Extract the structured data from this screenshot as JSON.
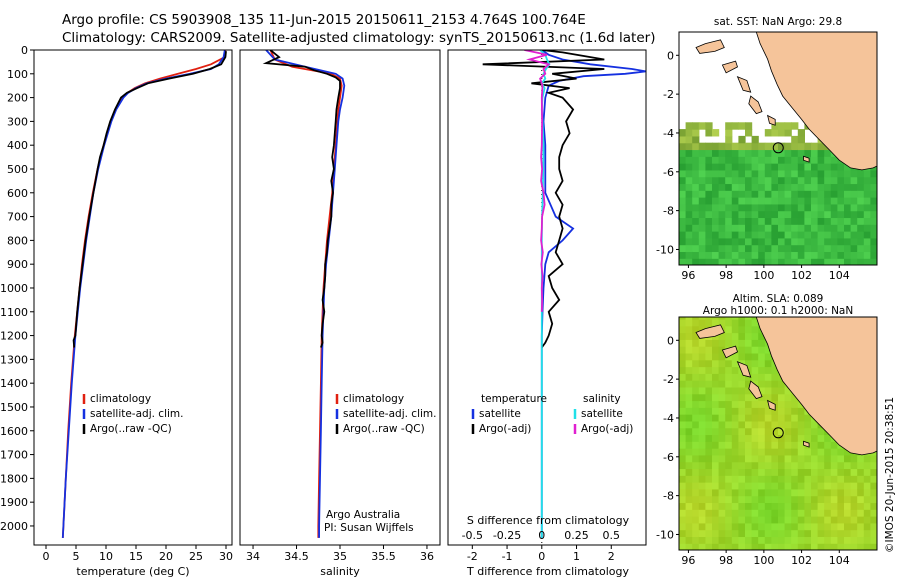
{
  "header": {
    "line1": "Argo profile: CS 5903908_135 11-Jun-2015 20150611_2153 4.764S 100.764E",
    "line2": "Climatology: CARS2009. Satellite-adjusted climatology: synTS_20150613.nc (1.6d later)"
  },
  "colors": {
    "climatology": "#e02010",
    "satellite": "#1530e0",
    "argo": "#000000",
    "satellite_salinity": "#20e0e8",
    "argo_salinity": "#e020d0",
    "land": "#f5c49a",
    "sst_ocean": "#3cc040",
    "sla_ocean": "#9ae020"
  },
  "depth_axis": {
    "ticks": [
      0,
      100,
      200,
      300,
      400,
      500,
      600,
      700,
      800,
      900,
      1000,
      1100,
      1200,
      1300,
      1400,
      1500,
      1600,
      1700,
      1800,
      1900,
      2000
    ],
    "range": [
      0,
      2080
    ]
  },
  "chart_data": [
    {
      "id": "temperature",
      "type": "line",
      "xlabel": "temperature (deg C)",
      "xticks": [
        0,
        5,
        10,
        15,
        20,
        25,
        30
      ],
      "xlim": [
        -2,
        31
      ],
      "legend": [
        "climatology",
        "satellite-adj. clim.",
        "Argo(..raw -QC)"
      ],
      "series": [
        {
          "name": "climatology",
          "color": "#e02010",
          "depth": [
            0,
            30,
            60,
            80,
            100,
            120,
            140,
            160,
            180,
            200,
            250,
            300,
            350,
            400,
            450,
            500,
            600,
            700,
            800,
            900,
            1000,
            1100,
            1200,
            1400,
            1600,
            1800,
            2000,
            2050
          ],
          "values": [
            29.9,
            29.8,
            27.5,
            25,
            22,
            19,
            16.5,
            14.8,
            13.6,
            12.8,
            11.6,
            10.8,
            10.2,
            9.6,
            9.1,
            8.6,
            7.8,
            7.1,
            6.5,
            6.0,
            5.6,
            5.2,
            4.8,
            4.2,
            3.7,
            3.3,
            2.9,
            2.8
          ]
        },
        {
          "name": "satellite-adj. clim.",
          "color": "#1530e0",
          "depth": [
            0,
            30,
            60,
            80,
            100,
            120,
            140,
            160,
            180,
            200,
            250,
            300,
            350,
            400,
            450,
            500,
            600,
            700,
            800,
            900,
            1000,
            1100,
            1200,
            1400,
            1600,
            1800,
            2000,
            2050
          ],
          "values": [
            29.8,
            29.6,
            28.8,
            27.5,
            24,
            20,
            16.8,
            15.0,
            13.7,
            12.9,
            11.7,
            10.9,
            10.3,
            9.7,
            9.2,
            8.7,
            7.9,
            7.3,
            6.7,
            6.2,
            5.7,
            5.3,
            4.9,
            4.3,
            3.8,
            3.3,
            2.9,
            2.8
          ]
        },
        {
          "name": "Argo(..raw -QC)",
          "color": "#000000",
          "depth": [
            5,
            30,
            60,
            80,
            100,
            120,
            140,
            160,
            180,
            200,
            250,
            300,
            350,
            400,
            450,
            500,
            600,
            700,
            800,
            900,
            1000,
            1100,
            1200,
            1220,
            1250
          ],
          "values": [
            30.0,
            29.9,
            29.2,
            27.3,
            24.5,
            20.5,
            17,
            15.2,
            13.5,
            12.5,
            11.5,
            10.7,
            10.1,
            9.6,
            9.0,
            8.6,
            7.9,
            7.2,
            6.6,
            6.1,
            5.6,
            5.2,
            4.9,
            4.6,
            4.7
          ]
        }
      ]
    },
    {
      "id": "salinity",
      "type": "line",
      "xlabel": "salinity",
      "xticks": [
        "34",
        "34.5",
        "35",
        "35.5",
        "36"
      ],
      "xlim": [
        33.85,
        36.15
      ],
      "legend": [
        "climatology",
        "satellite-adj. clim.",
        "Argo(..raw -QC)"
      ],
      "series": [
        {
          "name": "climatology",
          "color": "#e02010",
          "depth": [
            0,
            40,
            70,
            100,
            120,
            150,
            200,
            250,
            300,
            400,
            500,
            600,
            700,
            800,
            900,
            1000,
            1200,
            1400,
            1600,
            1800,
            2000,
            2050
          ],
          "values": [
            34.2,
            34.25,
            34.45,
            34.9,
            35.0,
            35.02,
            35.0,
            34.98,
            34.97,
            34.95,
            34.93,
            34.91,
            34.88,
            34.85,
            34.83,
            34.81,
            34.79,
            34.78,
            34.77,
            34.76,
            34.75,
            34.75
          ]
        },
        {
          "name": "satellite-adj. clim.",
          "color": "#1530e0",
          "depth": [
            0,
            40,
            70,
            100,
            120,
            150,
            200,
            250,
            300,
            400,
            500,
            600,
            700,
            800,
            900,
            1000,
            1200,
            1400,
            1600,
            1800,
            2000,
            2050
          ],
          "values": [
            34.15,
            34.25,
            34.6,
            34.95,
            35.03,
            35.05,
            35.03,
            35.0,
            34.98,
            34.96,
            34.94,
            34.92,
            34.9,
            34.87,
            34.84,
            34.82,
            34.8,
            34.79,
            34.78,
            34.77,
            34.76,
            34.76
          ]
        },
        {
          "name": "Argo(..raw -QC)",
          "color": "#000000",
          "depth": [
            0,
            30,
            55,
            70,
            85,
            100,
            115,
            130,
            160,
            200,
            250,
            300,
            350,
            400,
            450,
            500,
            550,
            600,
            650,
            700,
            750,
            800,
            850,
            900,
            950,
            1000,
            1050,
            1100,
            1150,
            1200,
            1230,
            1250
          ],
          "values": [
            34.2,
            34.3,
            34.15,
            34.6,
            34.7,
            34.85,
            34.95,
            35.0,
            35.0,
            34.98,
            34.96,
            34.95,
            34.94,
            34.93,
            34.91,
            34.93,
            34.9,
            34.92,
            34.9,
            34.9,
            34.88,
            34.86,
            34.85,
            34.83,
            34.83,
            34.82,
            34.8,
            34.82,
            34.8,
            34.79,
            34.8,
            34.78
          ]
        }
      ],
      "annotation": [
        "Argo Australia",
        "PI: Susan Wijffels"
      ]
    },
    {
      "id": "difference",
      "type": "line",
      "xlabel": "T difference from climatology",
      "xlabel_top": "S difference from climatology",
      "xticks": [
        "-2",
        "-1",
        "0",
        "1",
        "2"
      ],
      "xticks_top": [
        "-0.5",
        "-0.25",
        "0",
        "0.25",
        "0.5"
      ],
      "xlim": [
        -2.7,
        3.0
      ],
      "legend_temperature_title": "temperature",
      "legend_salinity_title": "salinity",
      "legend": [
        "satellite",
        "Argo(-adj)",
        "satellite",
        "Argo(-adj)"
      ],
      "series": [
        {
          "name": "T satellite",
          "color": "#1530e0",
          "depth": [
            0,
            20,
            40,
            60,
            80,
            90,
            100,
            110,
            130,
            150,
            200,
            300,
            400,
            500,
            600,
            700,
            750,
            800,
            850,
            900,
            1000,
            1100,
            1200,
            1400,
            1600,
            1800,
            2000,
            2050
          ],
          "values": [
            0,
            0.2,
            0.6,
            1.4,
            2.6,
            3.0,
            2.4,
            1.2,
            0.5,
            0.2,
            0.1,
            0.05,
            0.1,
            0.1,
            0.1,
            0.4,
            0.9,
            0.6,
            0.2,
            0.1,
            0.05,
            0.02,
            0,
            0,
            0,
            0,
            0,
            0
          ]
        },
        {
          "name": "T Argo(-adj)",
          "color": "#000000",
          "depth": [
            0,
            10,
            20,
            40,
            60,
            80,
            100,
            120,
            140,
            160,
            180,
            200,
            250,
            300,
            350,
            400,
            450,
            500,
            550,
            600,
            650,
            700,
            750,
            800,
            850,
            900,
            950,
            1000,
            1050,
            1100,
            1150,
            1200,
            1230,
            1250
          ],
          "values": [
            0,
            0.6,
            1.0,
            1.8,
            -1.7,
            1.8,
            0.3,
            1.0,
            -0.3,
            0.8,
            0.2,
            0.6,
            0.9,
            0.7,
            0.8,
            0.6,
            0.5,
            0.5,
            0.6,
            0.4,
            0.6,
            0.5,
            0.6,
            0.5,
            0.4,
            0.6,
            0.2,
            0.3,
            0.5,
            0.2,
            0.3,
            0.2,
            0.1,
            0.0
          ]
        },
        {
          "name": "S satellite",
          "color": "#20e0e8",
          "depth": [
            0,
            20,
            40,
            60,
            80,
            100,
            120,
            140,
            160,
            200,
            250,
            300,
            400,
            500,
            600,
            700,
            800,
            900,
            1000,
            1200,
            1400,
            1600,
            1800,
            2000,
            2050
          ],
          "values": [
            -0.05,
            0.1,
            0.15,
            0.22,
            0.12,
            0.05,
            0.1,
            0.0,
            0.08,
            0.02,
            0.0,
            0.02,
            0.05,
            0.04,
            0.03,
            0.01,
            0.0,
            0.0,
            0.0,
            0.0,
            0.0,
            0.0,
            0.0,
            0.0,
            0.0
          ]
        },
        {
          "name": "S Argo(-adj)",
          "color": "#e020d0",
          "depth": [
            0,
            20,
            40,
            60,
            80,
            100,
            120,
            150,
            200,
            300,
            400,
            450,
            500,
            550,
            600,
            650,
            700,
            750,
            800,
            850,
            900,
            950,
            1000,
            1050,
            1100
          ],
          "values": [
            -0.5,
            0.15,
            -0.35,
            0.2,
            0.05,
            0.1,
            -0.05,
            0.02,
            0.0,
            0.01,
            0.0,
            -0.02,
            0.01,
            -0.02,
            0.05,
            0.08,
            0.01,
            0.0,
            -0.02,
            0.03,
            -0.01,
            0.02,
            0.0,
            0.01,
            0.0
          ]
        }
      ]
    },
    {
      "id": "sst_map",
      "type": "heatmap",
      "title": "sat. SST: NaN Argo: 29.8",
      "xticks": [
        "96",
        "98",
        "100",
        "102",
        "104"
      ],
      "yticks": [
        "0",
        "-2",
        "-4",
        "-6",
        "-8",
        "-10"
      ],
      "xlim": [
        95.5,
        106.0
      ],
      "ylim": [
        -10.8,
        1.2
      ],
      "float_position": {
        "lon": 100.764,
        "lat": -4.764
      }
    },
    {
      "id": "sla_map",
      "type": "heatmap",
      "title_line1": "Altim. SLA: 0.089",
      "title_line2": "Argo h1000: 0.1 h2000: NaN",
      "xticks": [
        "96",
        "98",
        "100",
        "102",
        "104"
      ],
      "yticks": [
        "0",
        "-2",
        "-4",
        "-6",
        "-8",
        "-10"
      ],
      "xlim": [
        95.5,
        106.0
      ],
      "ylim": [
        -10.8,
        1.2
      ],
      "float_position": {
        "lon": 100.764,
        "lat": -4.764
      }
    }
  ],
  "credit": "©IMOS 20-Jun-2015 20:38:51"
}
